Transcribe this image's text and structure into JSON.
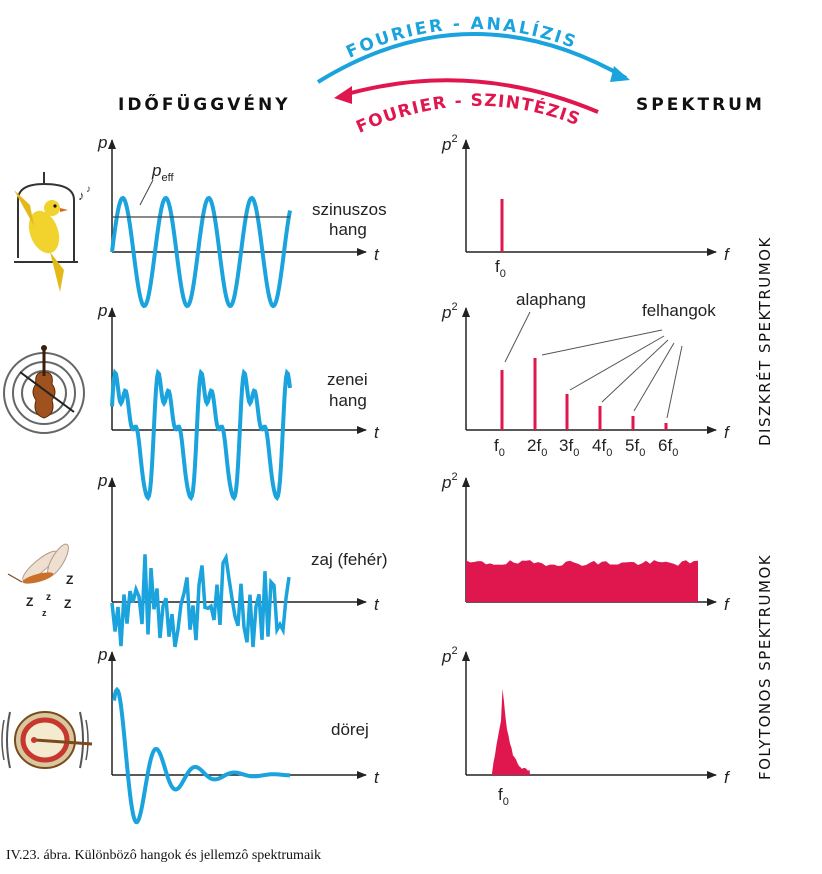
{
  "header": {
    "left": "IDŐFÜGGVÉNY",
    "right": "SPEKTRUM",
    "analysis": "FOURIER - ANALÍZIS",
    "synthesis": "FOURIER - SZINTÉZIS"
  },
  "axes": {
    "p": "p",
    "t": "t",
    "f": "f",
    "p2_base": "p",
    "p2_exp": "2"
  },
  "rows": [
    {
      "label_lines": [
        "szinuszos",
        "hang"
      ],
      "extra_label": "eff"
    },
    {
      "label_lines": [
        "zenei",
        "hang"
      ]
    },
    {
      "label_lines": [
        "zaj (fehér)"
      ]
    },
    {
      "label_lines": [
        "dörej"
      ]
    }
  ],
  "spectrum_labels": {
    "fundamental": "alaphang",
    "overtones": "felhangok",
    "harmonics": [
      "f",
      "2f",
      "3f",
      "4f",
      "5f",
      "6f"
    ],
    "subscript": "0"
  },
  "side_labels": {
    "discrete": "DISZKRÉT SPEKTRUMOK",
    "continuous": "FOLYTONOS SPEKTRUMOK"
  },
  "caption": "IV.23. ábra. Különbözô hangok és jellemzô spektrumaik",
  "colors": {
    "wave": "#1aa3dd",
    "spectrum": "#e0174f",
    "analysis_arrow": "#1aa3dd",
    "synthesis_arrow": "#e0174f"
  }
}
